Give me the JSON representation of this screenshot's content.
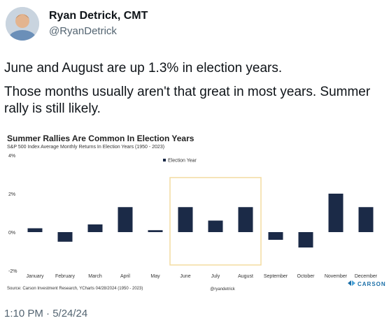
{
  "tweet": {
    "author_name": "Ryan Detrick, CMT",
    "author_handle": "@RyanDetrick",
    "text_line1": "June and August are up 1.3% in election years.",
    "text_line2": "Those months usually aren't that great in most years. Summer rally is still likely.",
    "timestamp": "1:10 PM · 5/24/24"
  },
  "chart_data": {
    "type": "bar",
    "title": "Summer Rallies Are Common In Election Years",
    "subtitle": "S&P 500 Index Average Monthly Returns In Election Years (1950 - 2023)",
    "categories": [
      "January",
      "February",
      "March",
      "April",
      "May",
      "June",
      "July",
      "August",
      "September",
      "October",
      "November",
      "December"
    ],
    "series": [
      {
        "name": "Election Year",
        "values": [
          0.2,
          -0.5,
          0.4,
          1.3,
          0.1,
          1.3,
          0.6,
          1.3,
          -0.4,
          -0.8,
          2.0,
          1.3
        ]
      }
    ],
    "y_ticks": [
      "4%",
      "2%",
      "0%",
      "-2%"
    ],
    "ylim": [
      -2,
      4
    ],
    "highlight_categories": [
      "June",
      "July",
      "August"
    ],
    "legend_position": "top-center",
    "grid": false,
    "bar_color": "#1b2a47",
    "highlight_color": "#f3dca0",
    "source": "Source: Carson Investment Research, YCharts 04/28/2024 (1950 - 2023)",
    "watermark": "@ryandetrick",
    "brand": "CARSON",
    "brand_color": "#1b6fa8"
  }
}
